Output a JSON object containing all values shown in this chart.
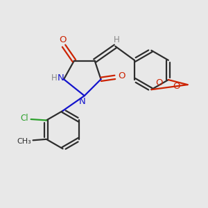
{
  "bg_color": "#e8e8e8",
  "bond_color": "#2d2d2d",
  "nitrogen_color": "#1414cc",
  "oxygen_color": "#cc2200",
  "chlorine_color": "#2ca02c",
  "hydrogen_color": "#888888",
  "figsize": [
    3.0,
    3.0
  ],
  "dpi": 100,
  "xlim": [
    0,
    10
  ],
  "ylim": [
    0,
    10
  ]
}
